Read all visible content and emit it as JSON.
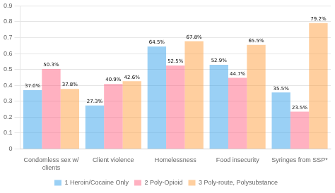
{
  "chart_data": {
    "type": "bar",
    "categories": [
      "Condomless sex w/\nclients",
      "Client violence",
      "Homelessness",
      "Food insecurity",
      "Syringes from SSP*"
    ],
    "series": [
      {
        "name": "1 Heroin/Cocaine Only",
        "values": [
          0.37,
          0.273,
          0.645,
          0.529,
          0.355
        ],
        "value_labels": [
          "37.0%",
          "27.3%",
          "64.5%",
          "52.9%",
          "35.5%"
        ]
      },
      {
        "name": "2 Poly-Opioid",
        "values": [
          0.503,
          0.409,
          0.525,
          0.447,
          0.235
        ],
        "value_labels": [
          "50.3%",
          "40.9%",
          "52.5%",
          "44.7%",
          "23.5%"
        ]
      },
      {
        "name": "3 Poly-route, Polysubstance",
        "values": [
          0.378,
          0.426,
          0.678,
          0.655,
          0.792
        ],
        "value_labels": [
          "37.8%",
          "42.6%",
          "67.8%",
          "65.5%",
          "79.2%"
        ]
      }
    ],
    "ylim": [
      0,
      0.9
    ],
    "yticks": [
      0,
      0.1,
      0.2,
      0.3,
      0.4,
      0.5,
      0.6,
      0.7,
      0.8,
      0.9
    ],
    "grid": true,
    "legend": "bottom",
    "data_labels": true
  }
}
